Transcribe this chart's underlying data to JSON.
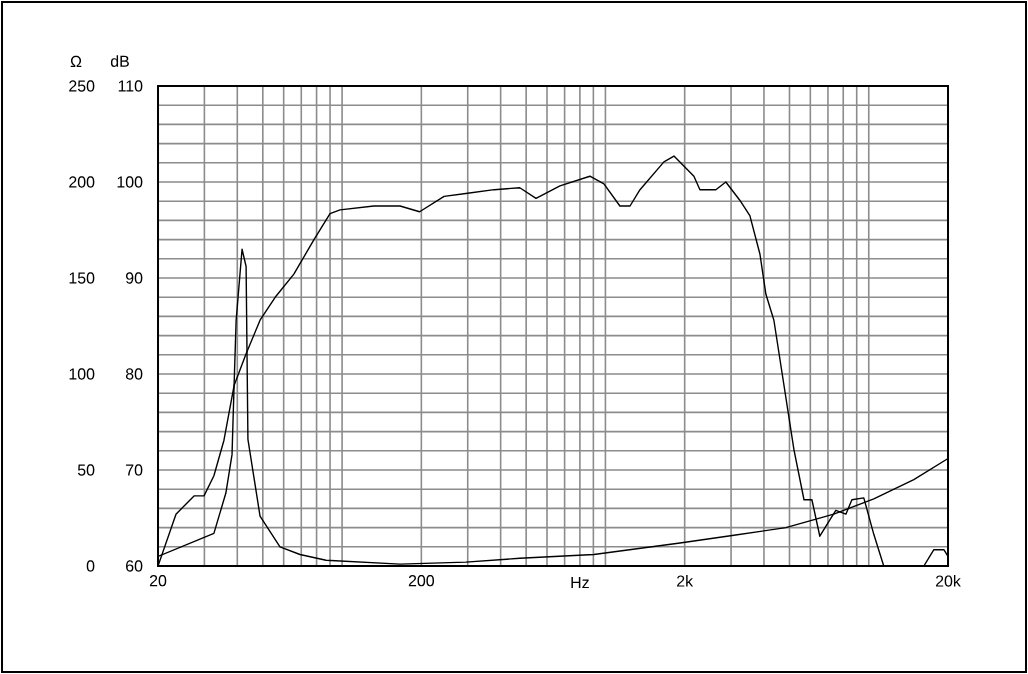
{
  "chart_data": {
    "type": "line",
    "xlabel": "Hz",
    "ylabel": "dB",
    "y2label": "Ω",
    "log": "x",
    "grid": true,
    "xlim": [
      20,
      20000
    ],
    "xticks": [
      20,
      {
        "value": 30,
        "label": null
      },
      {
        "value": 40,
        "label": null
      },
      {
        "value": 50,
        "label": null
      },
      {
        "value": 60,
        "label": null
      },
      {
        "value": 70,
        "label": null
      },
      {
        "value": 80,
        "label": null
      },
      {
        "value": 90,
        "label": null
      },
      {
        "value": 100,
        "label": null
      },
      200,
      {
        "value": 300,
        "label": null
      },
      {
        "value": 400,
        "label": null
      },
      {
        "value": 500,
        "label": null
      },
      {
        "value": 600,
        "label": null
      },
      {
        "value": 700,
        "label": null
      },
      {
        "value": 800,
        "label": null
      },
      {
        "value": 900,
        "label": null
      },
      {
        "value": 1000,
        "label": null
      },
      {
        "value": 2000,
        "label": "2k"
      },
      {
        "value": 3000,
        "label": null
      },
      {
        "value": 4000,
        "label": null
      },
      {
        "value": 5000,
        "label": null
      },
      {
        "value": 6000,
        "label": null
      },
      {
        "value": 7000,
        "label": null
      },
      {
        "value": 8000,
        "label": null
      },
      {
        "value": 9000,
        "label": null
      },
      {
        "value": 10000,
        "label": null
      },
      {
        "value": 20000,
        "label": "20k"
      }
    ],
    "ylim": [
      60,
      110
    ],
    "yticks": [
      60,
      {
        "value": 62,
        "label": null
      },
      {
        "value": 64,
        "label": null
      },
      {
        "value": 66,
        "label": null
      },
      {
        "value": 68,
        "label": null
      },
      70,
      {
        "value": 72,
        "label": null
      },
      {
        "value": 74,
        "label": null
      },
      {
        "value": 76,
        "label": null
      },
      {
        "value": 78,
        "label": null
      },
      80,
      {
        "value": 82,
        "label": null
      },
      {
        "value": 84,
        "label": null
      },
      {
        "value": 86,
        "label": null
      },
      {
        "value": 88,
        "label": null
      },
      90,
      {
        "value": 92,
        "label": null
      },
      {
        "value": 94,
        "label": null
      },
      {
        "value": 96,
        "label": null
      },
      {
        "value": 98,
        "label": null
      },
      100,
      {
        "value": 102,
        "label": null
      },
      {
        "value": 104,
        "label": null
      },
      {
        "value": 106,
        "label": null
      },
      {
        "value": 108,
        "label": null
      },
      110
    ],
    "y2lim": [
      0,
      250
    ],
    "y2ticks": [
      0,
      50,
      100,
      150,
      200,
      250
    ],
    "series": [
      {
        "color": "#000000",
        "x": [
          20,
          23.4,
          27.4,
          29.9,
          32.6,
          35.6,
          38.9,
          43.2,
          48.8,
          56.1,
          65.6,
          78.2,
          90,
          98.2,
          132,
          166,
          197,
          244,
          295,
          378,
          473,
          545,
          672,
          873,
          987,
          1135,
          1240,
          1353,
          1668,
          1821,
          2168,
          2285,
          2626,
          2866,
          3238,
          3536,
          3861,
          4069,
          4363,
          5200,
          5677,
          6083,
          6519,
          7117,
          7500,
          8188,
          8630,
          9575,
          10450,
          11400,
          13500,
          16190,
          17670,
          19280,
          20000
        ],
        "values": [
          60,
          65.4,
          67.3,
          67.3,
          69.4,
          73.1,
          78.8,
          82.1,
          85.6,
          88.1,
          90.4,
          94.0,
          96.7,
          97.1,
          97.5,
          97.5,
          96.9,
          98.5,
          98.8,
          99.2,
          99.4,
          98.3,
          99.6,
          100.6,
          99.8,
          97.5,
          97.5,
          99.2,
          102.1,
          102.7,
          100.6,
          99.2,
          99.2,
          100,
          98.1,
          96.5,
          92.5,
          88.3,
          85.6,
          72.1,
          66.9,
          66.9,
          63.1,
          64.8,
          65.8,
          65.4,
          66.9,
          67.1,
          63.3,
          60,
          null,
          60,
          61.7,
          61.7,
          61.0
        ]
      },
      {
        "color": "#000000",
        "axis": "y2",
        "x": [
          20,
          32.6,
          36.2,
          38.2,
          38.9,
          39.6,
          41.7,
          43.2,
          43.9,
          48.8,
          58.1,
          69.2,
          86.9,
          166,
          295,
          473,
          904,
          1920,
          3076,
          4844,
          7365,
          10450,
          14830,
          20000
        ],
        "values": [
          5,
          17,
          38,
          58,
          94,
          128,
          165,
          156,
          66,
          26,
          10,
          6,
          3,
          1,
          2,
          4,
          6,
          12,
          16,
          20,
          27,
          35,
          45,
          56
        ]
      }
    ]
  }
}
